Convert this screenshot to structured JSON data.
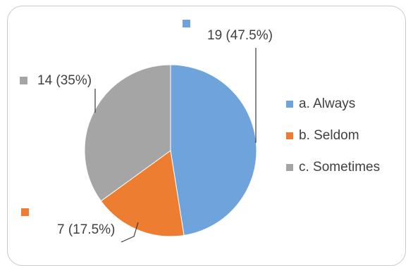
{
  "chart_data": {
    "type": "pie",
    "categories": [
      "a. Always",
      "b. Seldom",
      "c. Sometimes"
    ],
    "values": [
      19,
      7,
      14
    ],
    "data_labels": [
      "19 (47.5%)",
      "7 (17.5%)",
      "14 (35%)"
    ],
    "colors": [
      "#6fa3dc",
      "#ed7d31",
      "#a5a5a5"
    ],
    "legend_position": "right",
    "start_angle": "12 o'clock, clockwise"
  }
}
